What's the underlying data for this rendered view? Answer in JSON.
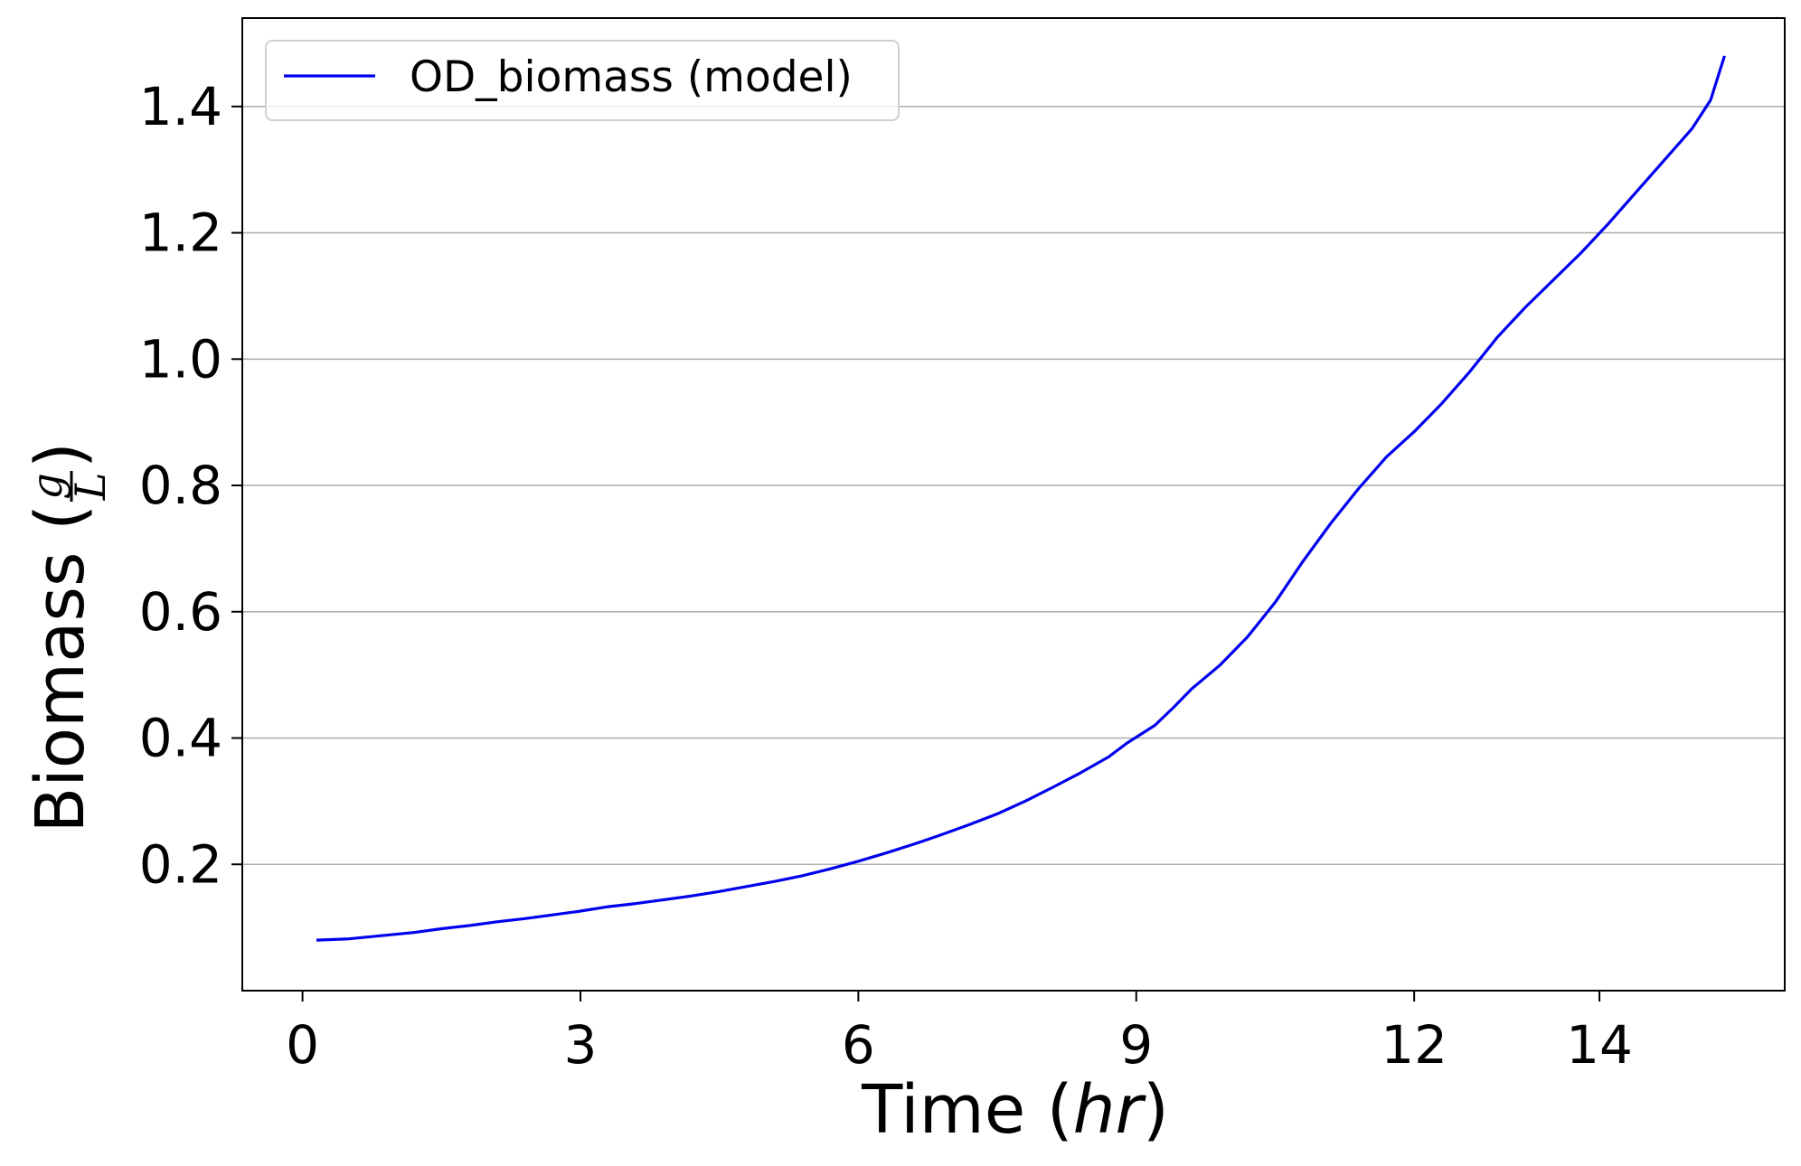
{
  "chart_data": {
    "type": "line",
    "xlabel": {
      "prefix": "Time (",
      "unit": "hr",
      "suffix": ")"
    },
    "ylabel": {
      "prefix": "Biomass (",
      "numerator": "g",
      "denominator": "L",
      "suffix": ")"
    },
    "xlim": [
      -0.65,
      16.0
    ],
    "ylim": [
      0.0,
      1.54
    ],
    "xticks": [
      {
        "value": 0,
        "label": "0"
      },
      {
        "value": 3,
        "label": "3"
      },
      {
        "value": 6,
        "label": "6"
      },
      {
        "value": 9,
        "label": "9"
      },
      {
        "value": 12,
        "label": "12"
      },
      {
        "value": 14,
        "label": "14"
      }
    ],
    "yticks": [
      {
        "value": 0.2,
        "label": "0.2"
      },
      {
        "value": 0.4,
        "label": "0.4"
      },
      {
        "value": 0.6,
        "label": "0.6"
      },
      {
        "value": 0.8,
        "label": "0.8"
      },
      {
        "value": 1.0,
        "label": "1.0"
      },
      {
        "value": 1.2,
        "label": "1.2"
      },
      {
        "value": 1.4,
        "label": "1.4"
      }
    ],
    "grid": "horizontal",
    "legend_position": "top-left",
    "series": [
      {
        "name": "OD_biomass (model)",
        "color": "#0000ee",
        "x": [
          0.15,
          0.5,
          0.85,
          1.2,
          1.5,
          1.8,
          2.1,
          2.4,
          2.7,
          3.0,
          3.3,
          3.6,
          3.9,
          4.2,
          4.5,
          4.8,
          5.1,
          5.4,
          5.7,
          6.0,
          6.3,
          6.6,
          6.9,
          7.2,
          7.5,
          7.8,
          8.1,
          8.4,
          8.7,
          8.9,
          9.2,
          9.4,
          9.6,
          9.9,
          10.2,
          10.5,
          10.8,
          11.1,
          11.4,
          11.7,
          12.0,
          12.3,
          12.6,
          12.9,
          13.2,
          13.5,
          13.8,
          14.1,
          14.4,
          14.7,
          15.0,
          15.2,
          15.35
        ],
        "y": [
          0.08,
          0.082,
          0.087,
          0.092,
          0.098,
          0.103,
          0.109,
          0.114,
          0.12,
          0.126,
          0.133,
          0.138,
          0.144,
          0.15,
          0.157,
          0.165,
          0.173,
          0.182,
          0.193,
          0.205,
          0.218,
          0.232,
          0.247,
          0.263,
          0.28,
          0.3,
          0.322,
          0.345,
          0.37,
          0.392,
          0.42,
          0.448,
          0.478,
          0.515,
          0.56,
          0.615,
          0.68,
          0.74,
          0.795,
          0.845,
          0.885,
          0.93,
          0.98,
          1.035,
          1.082,
          1.125,
          1.168,
          1.215,
          1.265,
          1.315,
          1.365,
          1.41,
          1.48
        ]
      }
    ]
  },
  "colors": {
    "series": "#0000ee",
    "grid": "#b0b0b0",
    "frame": "#000000",
    "legend_border": "#d0d0d0"
  }
}
